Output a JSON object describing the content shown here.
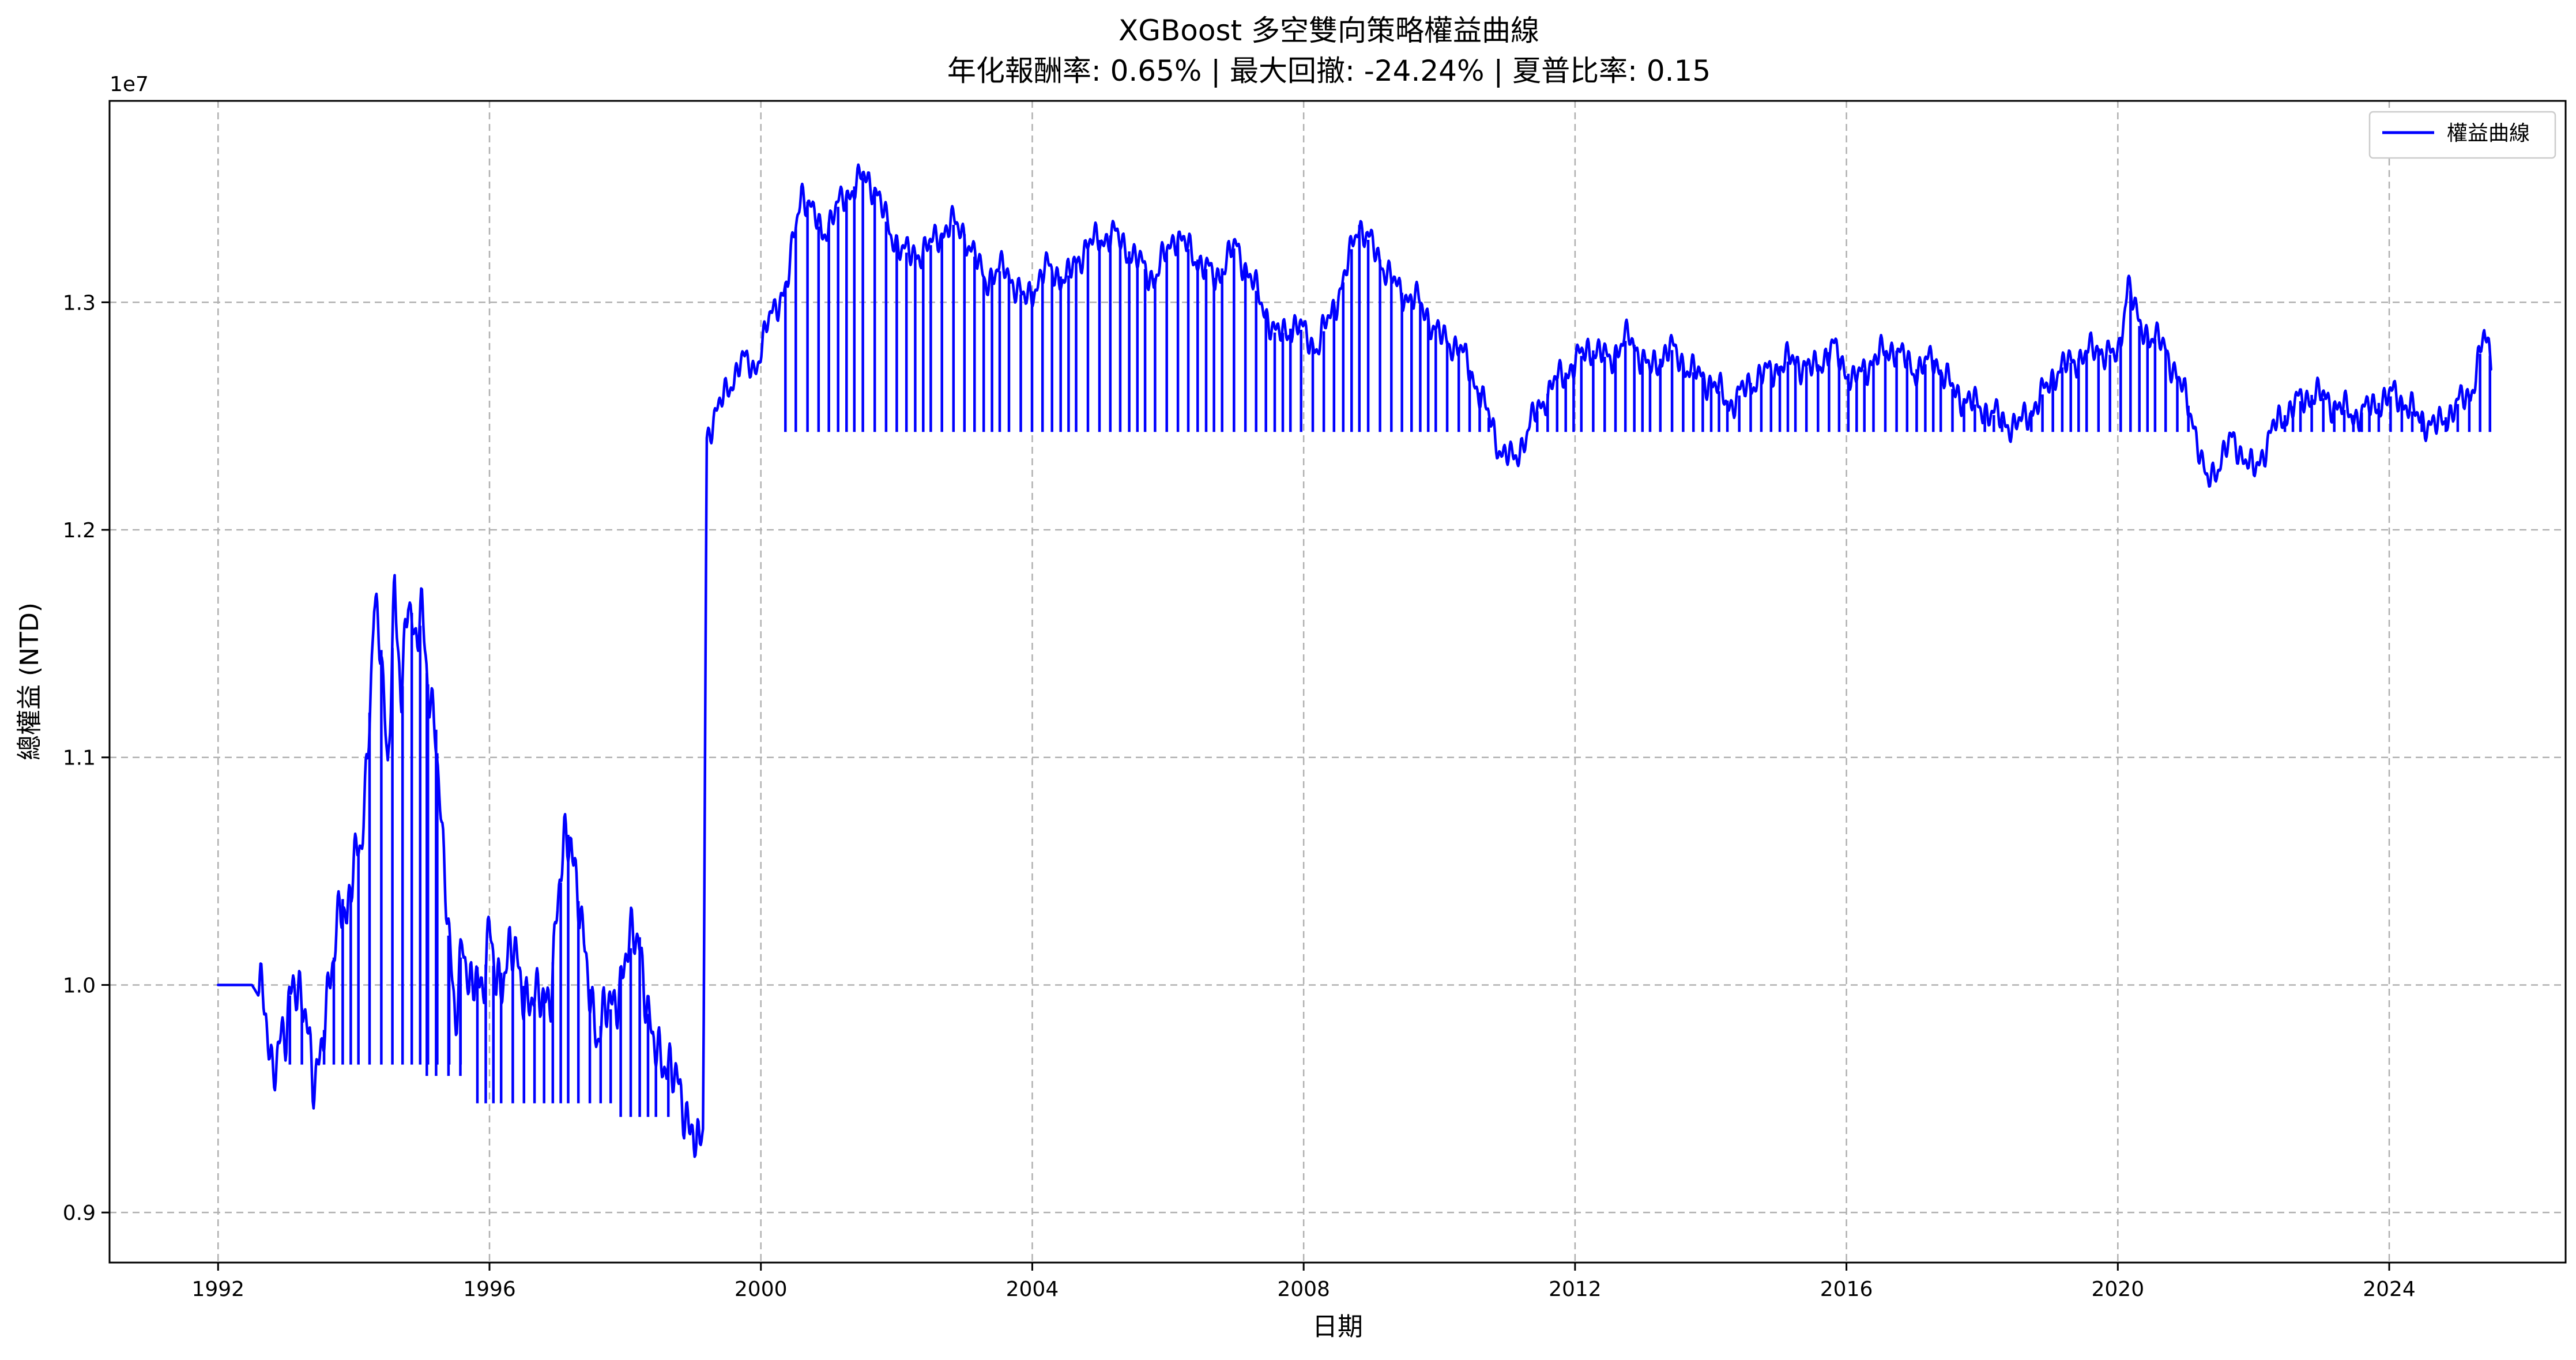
{
  "chart_data": {
    "type": "line",
    "title": "XGBoost 多空雙向策略權益曲線",
    "subtitle": "年化報酬率: 0.65% | 最大回撤: -24.24% | 夏普比率: 0.15",
    "xlabel": "日期",
    "ylabel": "總權益 (NTD)",
    "y_offset_label": "1e7",
    "x_tick_labels": [
      "1992",
      "1996",
      "2000",
      "2004",
      "2008",
      "2012",
      "2016",
      "2020",
      "2024"
    ],
    "x_tick_values": [
      1992,
      1996,
      2000,
      2004,
      2008,
      2012,
      2016,
      2020,
      2024
    ],
    "y_tick_labels": [
      "0.9",
      "1.0",
      "1.1",
      "1.2",
      "1.3"
    ],
    "y_tick_values": [
      0.9,
      1.0,
      1.1,
      1.2,
      1.3
    ],
    "xlim": [
      1990.4,
      2026.6
    ],
    "ylim": [
      0.878,
      1.3885
    ],
    "grid": true,
    "legend_position": "top-right",
    "series": [
      {
        "name": "權益曲線",
        "color": "#0000ff",
        "x": [
          1992.0,
          1992.3,
          1992.5,
          1992.7,
          1992.8,
          1993.0,
          1993.1,
          1993.3,
          1993.4,
          1993.6,
          1993.7,
          1993.8,
          1993.9,
          1994.0,
          1994.1,
          1994.2,
          1994.3,
          1994.4,
          1994.5,
          1994.6,
          1994.7,
          1994.8,
          1994.9,
          1995.0,
          1995.1,
          1995.2,
          1995.3,
          1995.4,
          1995.5,
          1995.6,
          1995.7,
          1995.8,
          1995.9,
          1996.0,
          1996.1,
          1996.3,
          1996.5,
          1996.7,
          1996.9,
          1997.1,
          1997.2,
          1997.3,
          1997.4,
          1997.6,
          1997.8,
          1998.0,
          1998.2,
          1998.4,
          1998.6,
          1998.8,
          1999.0,
          1999.05,
          1999.1,
          1999.15,
          1999.2,
          1999.3,
          1999.5,
          1999.7,
          1999.9,
          2000.1,
          2000.4,
          2000.6,
          2000.9,
          2001.2,
          2001.5,
          2001.7,
          2001.9,
          2002.2,
          2002.5,
          2002.8,
          2003.0,
          2003.3,
          2003.6,
          2003.9,
          2004.2,
          2004.5,
          2004.8,
          2005.2,
          2005.5,
          2005.8,
          2006.1,
          2006.4,
          2006.7,
          2007.0,
          2007.3,
          2007.6,
          2007.9,
          2008.2,
          2008.4,
          2008.6,
          2008.8,
          2009.1,
          2009.4,
          2009.7,
          2010.0,
          2010.3,
          2010.6,
          2010.9,
          2011.1,
          2011.4,
          2011.7,
          2011.9,
          2012.2,
          2012.5,
          2012.8,
          2013.1,
          2013.4,
          2013.7,
          2014.0,
          2014.3,
          2014.6,
          2014.9,
          2015.2,
          2015.5,
          2015.8,
          2016.1,
          2016.4,
          2016.7,
          2017.0,
          2017.3,
          2017.6,
          2017.9,
          2018.2,
          2018.5,
          2018.8,
          2019.1,
          2019.4,
          2019.7,
          2020.0,
          2020.15,
          2020.3,
          2020.5,
          2020.7,
          2020.9,
          2021.1,
          2021.3,
          2021.5,
          2021.7,
          2022.0,
          2022.3,
          2022.6,
          2022.9,
          2023.2,
          2023.5,
          2023.8,
          2024.1,
          2024.4,
          2024.7,
          2025.0,
          2025.2,
          2025.4,
          2025.5
        ],
        "values": [
          1.0,
          1.0,
          1.0,
          0.99,
          0.965,
          0.975,
          1.01,
          0.98,
          0.96,
          0.985,
          1.01,
          1.045,
          1.025,
          1.05,
          1.065,
          1.1,
          1.16,
          1.15,
          1.1,
          1.17,
          1.12,
          1.18,
          1.15,
          1.16,
          1.13,
          1.12,
          1.06,
          1.02,
          0.99,
          1.02,
          0.99,
          1.01,
          1.0,
          1.02,
          1.0,
          1.015,
          1.0,
          0.99,
          1.0,
          1.06,
          1.07,
          1.04,
          1.01,
          0.98,
          0.99,
          1.01,
          1.025,
          0.97,
          0.97,
          0.95,
          0.94,
          0.92,
          0.93,
          0.935,
          1.24,
          1.25,
          1.26,
          1.275,
          1.27,
          1.29,
          1.31,
          1.35,
          1.33,
          1.345,
          1.355,
          1.35,
          1.33,
          1.32,
          1.325,
          1.335,
          1.33,
          1.31,
          1.315,
          1.3,
          1.315,
          1.31,
          1.325,
          1.33,
          1.32,
          1.31,
          1.33,
          1.32,
          1.31,
          1.325,
          1.305,
          1.285,
          1.29,
          1.28,
          1.295,
          1.31,
          1.335,
          1.32,
          1.305,
          1.3,
          1.285,
          1.28,
          1.26,
          1.235,
          1.23,
          1.25,
          1.265,
          1.27,
          1.28,
          1.275,
          1.285,
          1.27,
          1.28,
          1.27,
          1.265,
          1.255,
          1.265,
          1.27,
          1.275,
          1.27,
          1.28,
          1.265,
          1.275,
          1.28,
          1.27,
          1.275,
          1.26,
          1.255,
          1.25,
          1.245,
          1.255,
          1.27,
          1.275,
          1.28,
          1.275,
          1.31,
          1.29,
          1.285,
          1.28,
          1.265,
          1.25,
          1.22,
          1.23,
          1.24,
          1.225,
          1.245,
          1.255,
          1.26,
          1.255,
          1.25,
          1.255,
          1.26,
          1.25,
          1.245,
          1.255,
          1.26,
          1.285,
          1.275
        ]
      }
    ],
    "spike_floor_periods": [
      {
        "floor": 0.965,
        "from": 1993.0,
        "to": 1995.6
      },
      {
        "floor": 0.96,
        "from": 1995.0,
        "to": 1995.6
      },
      {
        "floor": 0.948,
        "from": 1995.7,
        "to": 1997.8
      },
      {
        "floor": 0.942,
        "from": 1997.8,
        "to": 1998.7
      },
      {
        "floor": 1.243,
        "from": 2000.3,
        "to": 2025.5
      }
    ]
  }
}
